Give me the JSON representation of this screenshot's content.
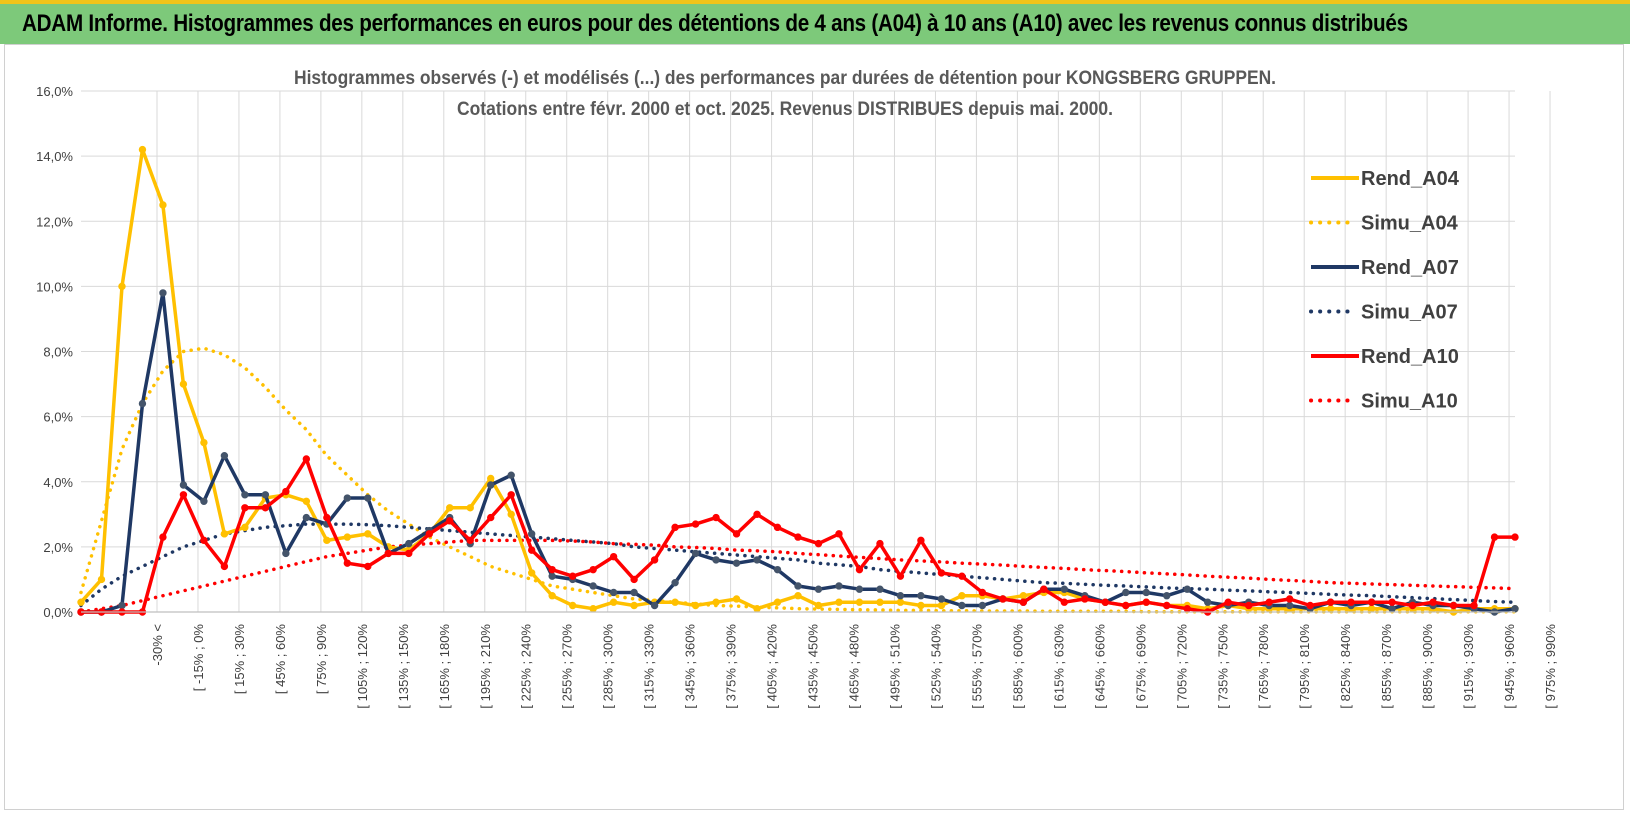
{
  "banner": {
    "title": "ADAM Informe. Histogrammes des performances en euros pour des détentions de 4 ans (A04) à 10 ans (A10) avec les revenus connus distribués"
  },
  "chart_data": {
    "type": "line",
    "title": "Histogrammes observés (-) et modélisés (...) des performances par durées de détention pour KONGSBERG GRUPPEN.",
    "subtitle": "Cotations entre févr. 2000 et oct. 2025. Revenus DISTRIBUES depuis mai. 2000.",
    "ylim": [
      0,
      16
    ],
    "yticks": [
      "0,0%",
      "2,0%",
      "4,0%",
      "6,0%",
      "8,0%",
      "10,0%",
      "12,0%",
      "14,0%",
      "16,0%"
    ],
    "grid": true,
    "legend_position": "top-right",
    "category_labels": [
      "-30% <",
      "[ -15% ; 0%",
      "[ 15% ; 30%",
      "[ 45% ; 60%",
      "[ 75% ; 90%",
      "[ 105% ; 120%",
      "[ 135% ; 150%",
      "[ 165% ; 180%",
      "[ 195% ; 210%",
      "[ 225% ; 240%",
      "[ 255% ; 270%",
      "[ 285% ; 300%",
      "[ 315% ; 330%",
      "[ 345% ; 360%",
      "[ 375% ; 390%",
      "[ 405% ; 420%",
      "[ 435% ; 450%",
      "[ 465% ; 480%",
      "[ 495% ; 510%",
      "[ 525% ; 540%",
      "[ 555% ; 570%",
      "[ 585% ; 600%",
      "[ 615% ; 630%",
      "[ 645% ; 660%",
      "[ 675% ; 690%",
      "[ 705% ; 720%",
      "[ 735% ; 750%",
      "[ 765% ; 780%",
      "[ 795% ; 810%",
      "[ 825% ; 840%",
      "[ 855% ; 870%",
      "[ 885% ; 900%",
      "[ 915% ; 930%",
      "[ 945% ; 960%",
      "[ 975% ; 990%"
    ],
    "series": [
      {
        "name": "Rend_A04",
        "color": "#ffc000",
        "style": "solid",
        "values": [
          0.3,
          1.0,
          10.0,
          14.2,
          12.5,
          7.0,
          5.2,
          2.4,
          2.6,
          3.5,
          3.6,
          3.4,
          2.2,
          2.3,
          2.4,
          2.0,
          1.9,
          2.4,
          3.2,
          3.2,
          4.1,
          3.0,
          1.2,
          0.5,
          0.2,
          0.1,
          0.3,
          0.2,
          0.3,
          0.3,
          0.2,
          0.3,
          0.4,
          0.1,
          0.3,
          0.5,
          0.2,
          0.3,
          0.3,
          0.3,
          0.3,
          0.2,
          0.2,
          0.5,
          0.5,
          0.4,
          0.5,
          0.6,
          0.6,
          0.4,
          0.3,
          0.2,
          0.3,
          0.2,
          0.2,
          0.1,
          0.2,
          0.1,
          0.1,
          0.1,
          0.1,
          0.1,
          0.1,
          0.1,
          0.1,
          0.1,
          0.1,
          0.0,
          0.1,
          0.1,
          0.1
        ]
      },
      {
        "name": "Simu_A04",
        "color": "#ffc000",
        "style": "dotted",
        "values": [
          0.6,
          2.8,
          5.0,
          6.4,
          7.4,
          8.0,
          8.1,
          7.9,
          7.5,
          6.9,
          6.2,
          5.6,
          4.8,
          4.2,
          3.6,
          3.1,
          2.7,
          2.3,
          2.0,
          1.7,
          1.4,
          1.2,
          1.0,
          0.8,
          0.7,
          0.6,
          0.5,
          0.4,
          0.35,
          0.3,
          0.25,
          0.2,
          0.18,
          0.15,
          0.13,
          0.1,
          0.09,
          0.08,
          0.07,
          0.06,
          0.05,
          0.05,
          0.04,
          0.04,
          0.03,
          0.03,
          0.03,
          0.02,
          0.02,
          0.02,
          0.02,
          0.02,
          0.01,
          0.01,
          0.01,
          0.01,
          0.01,
          0.01,
          0.01,
          0.01,
          0.01,
          0.01,
          0.01,
          0.01,
          0.01,
          0.01,
          0.01,
          0.01,
          0.01,
          0.01,
          0.01
        ]
      },
      {
        "name": "Rend_A07",
        "color": "#1f3864",
        "style": "solid",
        "values": [
          0.0,
          0.0,
          0.2,
          6.4,
          9.8,
          3.9,
          3.4,
          4.8,
          3.6,
          3.6,
          1.8,
          2.9,
          2.7,
          3.5,
          3.5,
          1.8,
          2.1,
          2.5,
          2.9,
          2.1,
          3.9,
          4.2,
          2.4,
          1.1,
          1.0,
          0.8,
          0.6,
          0.6,
          0.2,
          0.9,
          1.8,
          1.6,
          1.5,
          1.6,
          1.3,
          0.8,
          0.7,
          0.8,
          0.7,
          0.7,
          0.5,
          0.5,
          0.4,
          0.2,
          0.2,
          0.4,
          0.3,
          0.7,
          0.7,
          0.5,
          0.3,
          0.6,
          0.6,
          0.5,
          0.7,
          0.3,
          0.2,
          0.3,
          0.2,
          0.2,
          0.1,
          0.3,
          0.2,
          0.3,
          0.1,
          0.3,
          0.2,
          0.2,
          0.1,
          0.0,
          0.1
        ]
      },
      {
        "name": "Simu_A07",
        "color": "#1f3864",
        "style": "dotted",
        "values": [
          0.2,
          0.7,
          1.1,
          1.4,
          1.7,
          2.0,
          2.2,
          2.4,
          2.5,
          2.6,
          2.65,
          2.7,
          2.7,
          2.7,
          2.68,
          2.65,
          2.6,
          2.55,
          2.5,
          2.45,
          2.4,
          2.35,
          2.3,
          2.25,
          2.2,
          2.15,
          2.1,
          2.0,
          1.95,
          1.9,
          1.85,
          1.8,
          1.75,
          1.7,
          1.65,
          1.6,
          1.5,
          1.45,
          1.4,
          1.3,
          1.25,
          1.2,
          1.15,
          1.1,
          1.05,
          1.0,
          0.95,
          0.9,
          0.88,
          0.85,
          0.82,
          0.8,
          0.77,
          0.74,
          0.72,
          0.7,
          0.67,
          0.65,
          0.62,
          0.6,
          0.57,
          0.54,
          0.52,
          0.5,
          0.47,
          0.44,
          0.41,
          0.38,
          0.35,
          0.32,
          0.3
        ]
      },
      {
        "name": "Rend_A10",
        "color": "#ff0000",
        "style": "solid",
        "values": [
          0.0,
          0.0,
          0.0,
          0.0,
          2.3,
          3.6,
          2.2,
          1.4,
          3.2,
          3.2,
          3.7,
          4.7,
          2.9,
          1.5,
          1.4,
          1.8,
          1.8,
          2.4,
          2.8,
          2.2,
          2.9,
          3.6,
          1.9,
          1.3,
          1.1,
          1.3,
          1.7,
          1.0,
          1.6,
          2.6,
          2.7,
          2.9,
          2.4,
          3.0,
          2.6,
          2.3,
          2.1,
          2.4,
          1.3,
          2.1,
          1.1,
          2.2,
          1.2,
          1.1,
          0.6,
          0.4,
          0.3,
          0.7,
          0.3,
          0.4,
          0.3,
          0.2,
          0.3,
          0.2,
          0.1,
          0.0,
          0.3,
          0.2,
          0.3,
          0.4,
          0.2,
          0.3,
          0.3,
          0.3,
          0.3,
          0.2,
          0.3,
          0.2,
          0.2,
          2.3,
          2.3
        ]
      },
      {
        "name": "Simu_A10",
        "color": "#ff0000",
        "style": "dotted",
        "values": [
          0.0,
          0.1,
          0.2,
          0.35,
          0.5,
          0.65,
          0.8,
          0.95,
          1.1,
          1.25,
          1.4,
          1.55,
          1.7,
          1.8,
          1.9,
          2.0,
          2.05,
          2.1,
          2.15,
          2.2,
          2.2,
          2.2,
          2.2,
          2.2,
          2.18,
          2.15,
          2.1,
          2.08,
          2.05,
          2.0,
          1.98,
          1.95,
          1.9,
          1.88,
          1.85,
          1.8,
          1.76,
          1.72,
          1.68,
          1.64,
          1.6,
          1.57,
          1.54,
          1.5,
          1.47,
          1.44,
          1.4,
          1.37,
          1.34,
          1.3,
          1.27,
          1.24,
          1.2,
          1.17,
          1.14,
          1.1,
          1.07,
          1.04,
          1.0,
          0.97,
          0.94,
          0.9,
          0.88,
          0.86,
          0.84,
          0.82,
          0.8,
          0.78,
          0.76,
          0.74,
          0.72
        ]
      }
    ]
  }
}
